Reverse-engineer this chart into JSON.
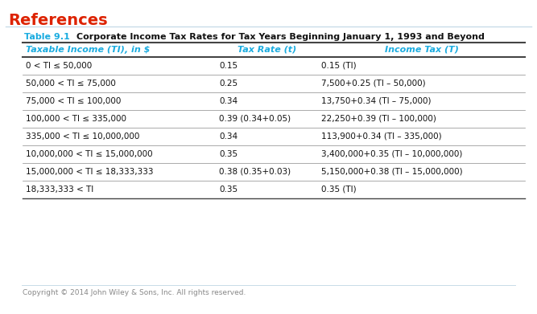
{
  "title_label": "Table 9.1",
  "title_text": "Corporate Income Tax Rates for Tax Years Beginning January 1, 1993 and Beyond",
  "header": [
    "Taxable Income (TI), in $",
    "Tax Rate (t)",
    "Income Tax (T)"
  ],
  "rows": [
    [
      "0 < TI ≤ 50,000",
      "0.15",
      "0.15 (TI)"
    ],
    [
      "50,000 < TI ≤ 75,000",
      "0.25",
      "7,500+0.25 (TI – 50,000)"
    ],
    [
      "75,000 < TI ≤ 100,000",
      "0.34",
      "13,750+0.34 (TI – 75,000)"
    ],
    [
      "100,000 < TI ≤ 335,000",
      "0.39 (0.34+0.05)",
      "22,250+0.39 (TI – 100,000)"
    ],
    [
      "335,000 < TI ≤ 10,000,000",
      "0.34",
      "113,900+0.34 (TI – 335,000)"
    ],
    [
      "10,000,000 < TI ≤ 15,000,000",
      "0.35",
      "3,400,000+0.35 (TI – 10,000,000)"
    ],
    [
      "15,000,000 < TI ≤ 18,333,333",
      "0.38 (0.35+0.03)",
      "5,150,000+0.38 (TI – 15,000,000)"
    ],
    [
      "18,333,333 < TI",
      "0.35",
      "0.35 (TI)"
    ]
  ],
  "page_title": "References",
  "copyright": "Copyright © 2014 John Wiley & Sons, Inc. All rights reserved.",
  "bg_color": "#ffffff",
  "header_color": "#1aace0",
  "title_label_color": "#1aace0",
  "page_title_color": "#dd2200",
  "border_color_light": "#c8dce8",
  "border_color_dark": "#444444",
  "sep_color": "#888888",
  "text_color": "#111111",
  "copy_color": "#888888"
}
